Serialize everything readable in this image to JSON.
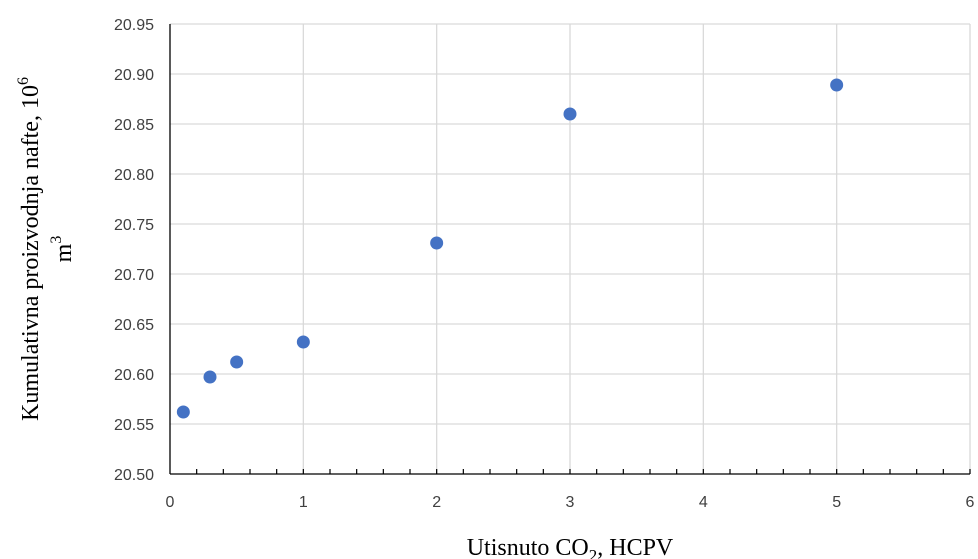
{
  "chart_data": {
    "type": "scatter",
    "x": [
      0.1,
      0.3,
      0.5,
      1,
      2,
      3,
      5
    ],
    "y": [
      20.562,
      20.597,
      20.612,
      20.632,
      20.731,
      20.86,
      20.889
    ],
    "xlim": [
      0,
      6
    ],
    "ylim": [
      20.5,
      20.95
    ],
    "x_ticks": [
      0,
      1,
      2,
      3,
      4,
      5,
      6
    ],
    "y_ticks": [
      "20.50",
      "20.55",
      "20.60",
      "20.65",
      "20.70",
      "20.75",
      "20.80",
      "20.85",
      "20.90",
      "20.95"
    ],
    "xlabel": {
      "main": "Utisnuto CO",
      "sub": "2",
      "rest": ", HCPV"
    },
    "ylabel": {
      "line1": "Kumulativna proizvodnja nafte, 10",
      "line1_sup": "6",
      "line2": "m",
      "line2_sup": "3"
    },
    "grid": true,
    "marker_color": "#4472c4"
  }
}
